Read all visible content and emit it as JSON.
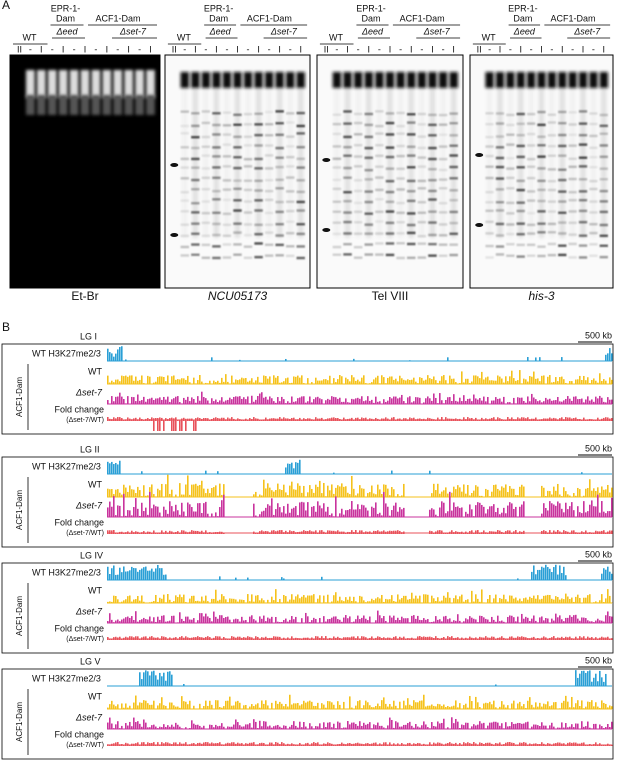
{
  "panel_a": {
    "label": "A",
    "headers": {
      "wt": "WT",
      "epr": "EPR-1-",
      "dam": "Dam",
      "eed": "Δeed",
      "acf": "ACF1-Dam",
      "set7": "Δset-7"
    },
    "lanes": [
      "II",
      "-",
      "I",
      "-",
      "I",
      "-",
      "I",
      "-",
      "I",
      "-",
      "I",
      "-",
      "I"
    ],
    "captions": [
      "Et-Br",
      "NCU05173",
      "Tel VIII",
      "his-3"
    ]
  },
  "panel_b": {
    "label": "B",
    "scale": "500 kb",
    "group": "ACF1-Dam",
    "tracks": [
      "WT H3K27me2/3",
      "WT",
      "Δset-7",
      "Fold change",
      "(Δset-7/WT)"
    ],
    "chromosomes": [
      "LG I",
      "LG II",
      "LG IV",
      "LG V"
    ]
  }
}
